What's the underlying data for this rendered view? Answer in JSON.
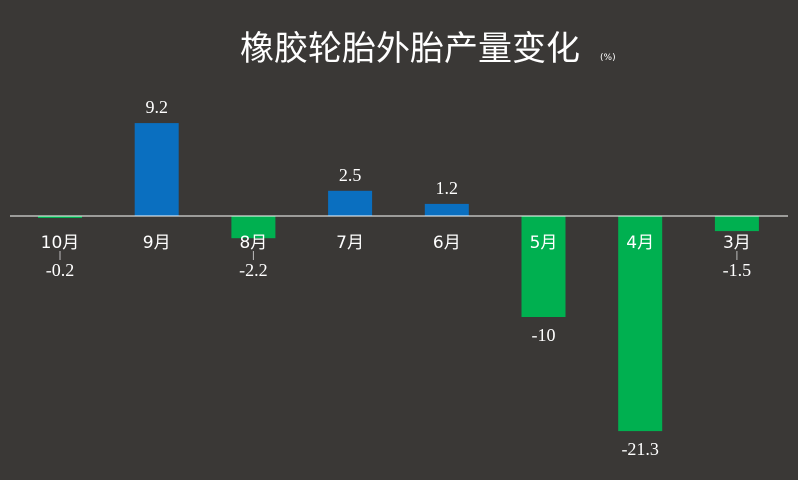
{
  "chart_data": {
    "type": "bar",
    "title": "橡胶轮胎外胎产量变化",
    "unit": "(%)",
    "categories": [
      "10月",
      "9月",
      "8月",
      "7月",
      "6月",
      "5月",
      "4月",
      "3月"
    ],
    "values": [
      -0.2,
      9.2,
      -2.2,
      2.5,
      1.2,
      -10,
      -21.3,
      -1.5
    ],
    "value_labels": [
      "-0.2",
      "9.2",
      "-2.2",
      "2.5",
      "1.2",
      "-10",
      "-21.3",
      "-1.5"
    ],
    "colors": {
      "positive": "#0a6fc0",
      "negative": "#00b050",
      "background": "#3a3836",
      "axis": "#ffffff",
      "text": "#ffffff"
    },
    "grid": false,
    "legend": false
  }
}
